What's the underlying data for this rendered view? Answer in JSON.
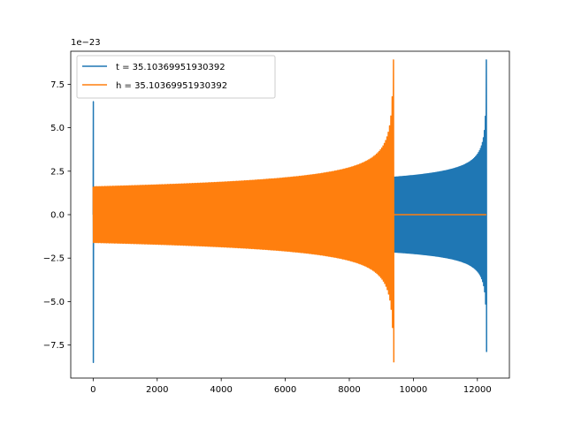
{
  "chart_data": {
    "type": "line",
    "title": "",
    "xlabel": "",
    "ylabel": "",
    "offset_label": "1e−23",
    "xlim": [
      -700,
      13000
    ],
    "ylim": [
      -9.4,
      9.4
    ],
    "x_ticks": [
      0,
      2000,
      4000,
      6000,
      8000,
      10000,
      12000
    ],
    "x_tick_labels": [
      "0",
      "2000",
      "4000",
      "6000",
      "8000",
      "10000",
      "12000"
    ],
    "y_ticks": [
      -7.5,
      -5.0,
      -2.5,
      0.0,
      2.5,
      5.0,
      7.5
    ],
    "y_tick_labels": [
      "−7.5",
      "−5.0",
      "−2.5",
      "0.0",
      "2.5",
      "5.0",
      "7.5"
    ],
    "legend": "upper-left",
    "grid": false,
    "series": [
      {
        "name": "t = 35.10369951930392",
        "color": "#1f77b4",
        "x_range": [
          0,
          12280
        ],
        "segments": [
          {
            "x0": 0,
            "x1": 12,
            "kind": "spike",
            "max": 6.5,
            "min": -8.5
          },
          {
            "x0": 12,
            "x1": 2900,
            "kind": "zero",
            "value": 0.0
          },
          {
            "x0": 2900,
            "x1": 9380,
            "kind": "oscillation",
            "amp_start": 1.55,
            "amp_end": 2.0,
            "cycles": 75
          },
          {
            "x0": 9380,
            "x1": 12280,
            "kind": "chirp",
            "amp_start": 2.15,
            "amp_peak_pos": 8.9,
            "amp_peak_neg": -7.9,
            "cycles": 95
          }
        ]
      },
      {
        "name": "h = 35.10369951930392",
        "color": "#ff7f0e",
        "x_range": [
          0,
          12280
        ],
        "segments": [
          {
            "x0": 0,
            "x1": 9380,
            "kind": "chirp",
            "amp_start": 1.6,
            "amp_peak_pos": 8.9,
            "amp_peak_neg": -8.5,
            "cycles": 230
          },
          {
            "x0": 9380,
            "x1": 12280,
            "kind": "zero",
            "value": 0.0
          }
        ]
      }
    ]
  }
}
